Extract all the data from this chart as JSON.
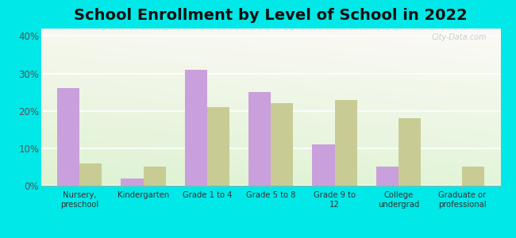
{
  "title": "School Enrollment by Level of School in 2022",
  "categories": [
    "Nursery,\npreschool",
    "Kindergarten",
    "Grade 1 to 4",
    "Grade 5 to 8",
    "Grade 9 to\n12",
    "College\nundergrad",
    "Graduate or\nprofessional"
  ],
  "zip_values": [
    26,
    2,
    31,
    25,
    11,
    5,
    0
  ],
  "mn_values": [
    6,
    5,
    21,
    22,
    23,
    18,
    5
  ],
  "zip_color": "#c9a0dc",
  "mn_color": "#c8cc94",
  "background_color": "#00e8e8",
  "ylim": [
    0,
    42
  ],
  "yticks": [
    0,
    10,
    20,
    30,
    40
  ],
  "ytick_labels": [
    "0%",
    "10%",
    "20%",
    "30%",
    "40%"
  ],
  "title_fontsize": 14,
  "bar_width": 0.35,
  "watermark": "City-Data.com"
}
